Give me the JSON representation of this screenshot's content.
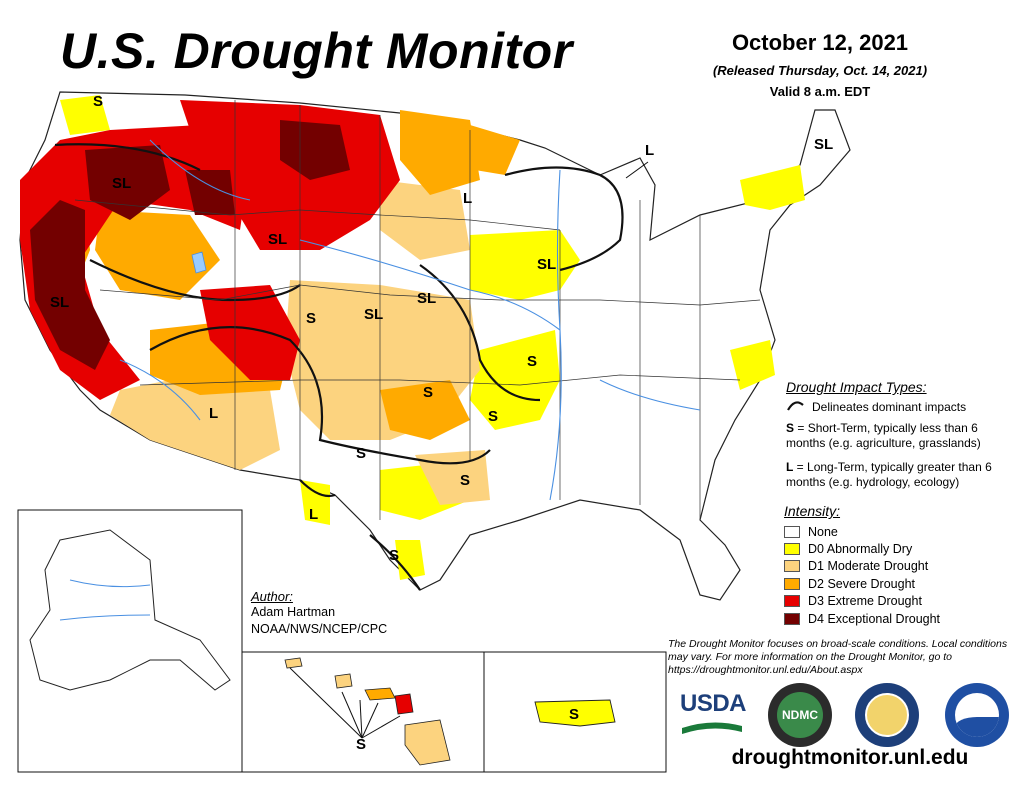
{
  "header": {
    "title": "U.S. Drought Monitor",
    "date": "October 12, 2021",
    "released": "(Released Thursday, Oct. 14, 2021)",
    "valid": "Valid 8 a.m. EDT"
  },
  "map_labels": {
    "sl": "SL",
    "s": "S",
    "l": "L"
  },
  "impact_types": {
    "title": "Drought Impact Types:",
    "delineates": "Delineates dominant impacts",
    "s_key": "S",
    "s_desc": " = Short-Term, typically less than 6 months (e.g. agriculture, grasslands)",
    "l_key": "L",
    "l_desc": " = Long-Term, typically greater than 6 months (e.g. hydrology, ecology)"
  },
  "intensity": {
    "title": "Intensity:",
    "levels": [
      {
        "label": "None",
        "color": "#ffffff"
      },
      {
        "label": "D0 Abnormally Dry",
        "color": "#ffff00"
      },
      {
        "label": "D1 Moderate Drought",
        "color": "#fcd37f"
      },
      {
        "label": "D2 Severe Drought",
        "color": "#ffaa00"
      },
      {
        "label": "D3 Extreme Drought",
        "color": "#e60000"
      },
      {
        "label": "D4 Exceptional Drought",
        "color": "#730000"
      }
    ]
  },
  "author": {
    "title": "Author:",
    "name": "Adam Hartman",
    "org": "NOAA/NWS/NCEP/CPC"
  },
  "disclaimer": "The Drought Monitor focuses on broad-scale conditions. Local conditions may vary. For more information on the Drought Monitor, go to https://droughtmonitor.unl.edu/About.aspx",
  "logos": {
    "usda": "USDA",
    "ndmc": "NDMC"
  },
  "website": "droughtmonitor.unl.edu"
}
